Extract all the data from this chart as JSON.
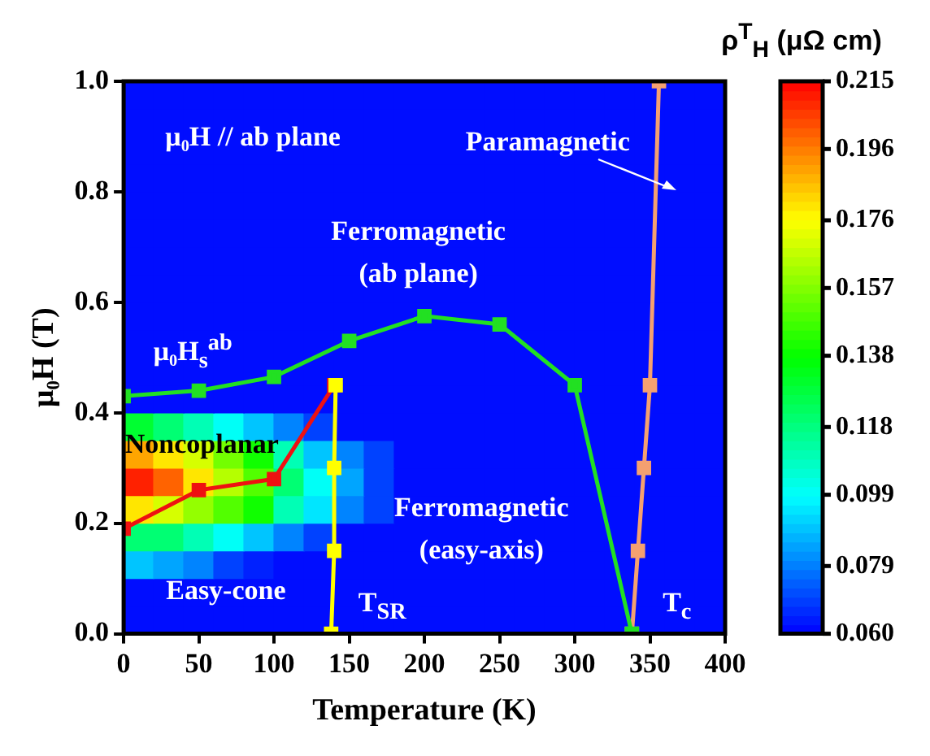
{
  "chart_data": [
    {
      "type": "heatmap",
      "clabel": "ρ$^{T}$$_{H}$ (μΩ cm)",
      "tick_labels": false,
      "categories": [
        null,
        null,
        null,
        null,
        null,
        null,
        null,
        null,
        null,
        null,
        null,
        null,
        null,
        null,
        null,
        null,
        null,
        null,
        null,
        null
      ],
      "y_categories": [
        null,
        null,
        null,
        null,
        null,
        null,
        null,
        null,
        null,
        null,
        null,
        null,
        null,
        null,
        null,
        null,
        null,
        null,
        null,
        null
      ],
      "cells": [
        [
          0.062,
          0.062,
          0.062,
          0.062,
          0.062,
          0.062,
          0.062,
          0.062,
          0.062,
          0.062,
          0.062,
          0.062,
          0.062,
          0.062,
          0.062,
          0.062,
          0.062,
          0.062,
          0.062,
          0.062
        ],
        [
          0.062,
          0.062,
          0.062,
          0.062,
          0.062,
          0.062,
          0.062,
          0.062,
          0.062,
          0.062,
          0.062,
          0.062,
          0.062,
          0.062,
          0.062,
          0.062,
          0.062,
          0.062,
          0.062,
          0.062
        ],
        [
          0.062,
          0.062,
          0.062,
          0.062,
          0.062,
          0.062,
          0.062,
          0.062,
          0.062,
          0.062,
          0.062,
          0.062,
          0.062,
          0.062,
          0.062,
          0.062,
          0.062,
          0.062,
          0.062,
          0.062
        ],
        [
          0.062,
          0.062,
          0.062,
          0.062,
          0.062,
          0.062,
          0.062,
          0.062,
          0.062,
          0.062,
          0.062,
          0.062,
          0.062,
          0.062,
          0.062,
          0.062,
          0.062,
          0.062,
          0.062,
          0.062
        ],
        [
          0.062,
          0.062,
          0.062,
          0.062,
          0.062,
          0.062,
          0.062,
          0.062,
          0.062,
          0.062,
          0.062,
          0.062,
          0.062,
          0.062,
          0.062,
          0.062,
          0.062,
          0.062,
          0.062,
          0.062
        ],
        [
          0.062,
          0.062,
          0.062,
          0.062,
          0.062,
          0.062,
          0.062,
          0.062,
          0.062,
          0.062,
          0.062,
          0.062,
          0.062,
          0.062,
          0.062,
          0.062,
          0.062,
          0.062,
          0.062,
          0.062
        ],
        [
          0.062,
          0.062,
          0.062,
          0.062,
          0.062,
          0.062,
          0.062,
          0.062,
          0.062,
          0.062,
          0.062,
          0.062,
          0.062,
          0.062,
          0.062,
          0.062,
          0.062,
          0.062,
          0.062,
          0.062
        ],
        [
          0.062,
          0.062,
          0.062,
          0.062,
          0.062,
          0.062,
          0.062,
          0.062,
          0.062,
          0.062,
          0.062,
          0.062,
          0.062,
          0.062,
          0.062,
          0.062,
          0.062,
          0.062,
          0.062,
          0.062
        ],
        [
          0.062,
          0.062,
          0.062,
          0.062,
          0.062,
          0.062,
          0.062,
          0.062,
          0.062,
          0.062,
          0.062,
          0.062,
          0.062,
          0.062,
          0.062,
          0.062,
          0.062,
          0.062,
          0.062,
          0.062
        ],
        [
          0.062,
          0.062,
          0.062,
          0.062,
          0.062,
          0.062,
          0.062,
          0.062,
          0.062,
          0.062,
          0.062,
          0.062,
          0.062,
          0.062,
          0.062,
          0.062,
          0.062,
          0.062,
          0.062,
          0.062
        ],
        [
          0.062,
          0.062,
          0.062,
          0.062,
          0.062,
          0.062,
          0.062,
          0.062,
          0.062,
          0.062,
          0.062,
          0.062,
          0.062,
          0.062,
          0.062,
          0.062,
          0.062,
          0.062,
          0.062,
          0.062
        ],
        [
          0.062,
          0.062,
          0.062,
          0.062,
          0.062,
          0.062,
          0.062,
          0.062,
          0.062,
          0.062,
          0.062,
          0.062,
          0.062,
          0.062,
          0.062,
          0.062,
          0.062,
          0.062,
          0.062,
          0.062
        ],
        [
          0.13,
          0.12,
          0.11,
          0.1,
          0.09,
          0.08,
          0.07,
          0.062,
          0.062,
          0.062,
          0.062,
          0.062,
          0.062,
          0.062,
          0.062,
          0.062,
          0.062,
          0.062,
          0.062,
          0.062
        ],
        [
          0.19,
          0.18,
          0.17,
          0.155,
          0.14,
          0.11,
          0.09,
          0.08,
          0.07,
          0.062,
          0.062,
          0.062,
          0.062,
          0.062,
          0.062,
          0.062,
          0.062,
          0.062,
          0.062,
          0.062
        ],
        [
          0.21,
          0.2,
          0.18,
          0.165,
          0.15,
          0.12,
          0.1,
          0.085,
          0.07,
          0.062,
          0.062,
          0.062,
          0.062,
          0.062,
          0.062,
          0.062,
          0.062,
          0.062,
          0.062,
          0.062
        ],
        [
          0.18,
          0.17,
          0.16,
          0.15,
          0.14,
          0.11,
          0.095,
          0.08,
          0.07,
          0.062,
          0.062,
          0.062,
          0.062,
          0.062,
          0.062,
          0.062,
          0.062,
          0.062,
          0.062,
          0.062
        ],
        [
          0.12,
          0.12,
          0.11,
          0.1,
          0.09,
          0.08,
          0.07,
          0.062,
          0.062,
          0.062,
          0.062,
          0.062,
          0.062,
          0.062,
          0.062,
          0.062,
          0.062,
          0.062,
          0.062,
          0.062
        ],
        [
          0.09,
          0.085,
          0.08,
          0.07,
          0.065,
          0.062,
          0.062,
          0.062,
          0.062,
          0.062,
          0.062,
          0.062,
          0.062,
          0.062,
          0.062,
          0.062,
          0.062,
          0.062,
          0.062,
          0.062
        ],
        [
          0.062,
          0.062,
          0.062,
          0.062,
          0.062,
          0.062,
          0.062,
          0.062,
          0.062,
          0.062,
          0.062,
          0.062,
          0.062,
          0.062,
          0.062,
          0.062,
          0.062,
          0.062,
          0.062,
          0.062
        ],
        [
          0.062,
          0.062,
          0.062,
          0.062,
          0.062,
          0.062,
          0.062,
          0.062,
          0.062,
          0.062,
          0.062,
          0.062,
          0.062,
          0.062,
          0.062,
          0.062,
          0.062,
          0.062,
          0.062,
          0.062
        ]
      ],
      "clim": [
        0.06,
        0.215
      ],
      "cticks": [
        {
          "value": 0.06,
          "label": "0.060"
        },
        0.079,
        0.099,
        0.118,
        0.138,
        0.157,
        0.176,
        0.196,
        0.215
      ]
    },
    {
      "type": "line",
      "xlabel": "Temperature (K)",
      "ylabel": "μ₀H (T)",
      "xlim": [
        0,
        400
      ],
      "xticks": [
        0,
        50,
        100,
        150,
        200,
        250,
        300,
        350,
        400
      ],
      "ylim": [
        0,
        1
      ],
      "yticks": [
        {
          "value": 0,
          "label": "0.0"
        },
        0.2,
        0.4,
        0.6,
        0.8,
        {
          "value": 1,
          "label": "1.0"
        }
      ],
      "marker": "square",
      "series": [
        {
          "type": "line",
          "color": "#22e022",
          "x": [
            0,
            50,
            100,
            150,
            200,
            250,
            300,
            338
          ],
          "values": [
            0.43,
            0.44,
            0.465,
            0.53,
            0.575,
            0.56,
            0.45,
            0
          ]
        },
        {
          "type": "line",
          "color": "#ffff00",
          "x": [
            138,
            140,
            140,
            141
          ],
          "values": [
            0,
            0.15,
            0.3,
            0.45
          ]
        },
        {
          "type": "line",
          "color": "#ee1111",
          "x": [
            0,
            50,
            100,
            140
          ],
          "values": [
            0.19,
            0.26,
            0.28,
            0.45
          ]
        },
        {
          "type": "line",
          "color": "#f4a070",
          "x": [
            338,
            342,
            346,
            350,
            356
          ],
          "values": [
            0,
            0.15,
            0.3,
            0.45,
            1
          ]
        }
      ],
      "annotations": [
        "μ₀H // ab plane",
        "Paramagnetic",
        "Ferromagnetic\n(ab plane)",
        "μ₀H$_{s}$$^{ab}$",
        "Noncoplanar",
        "Ferromagnetic\n(easy-axis)",
        "Easy-cone",
        "T$_{SR}$",
        "T$_{c}$"
      ]
    }
  ]
}
